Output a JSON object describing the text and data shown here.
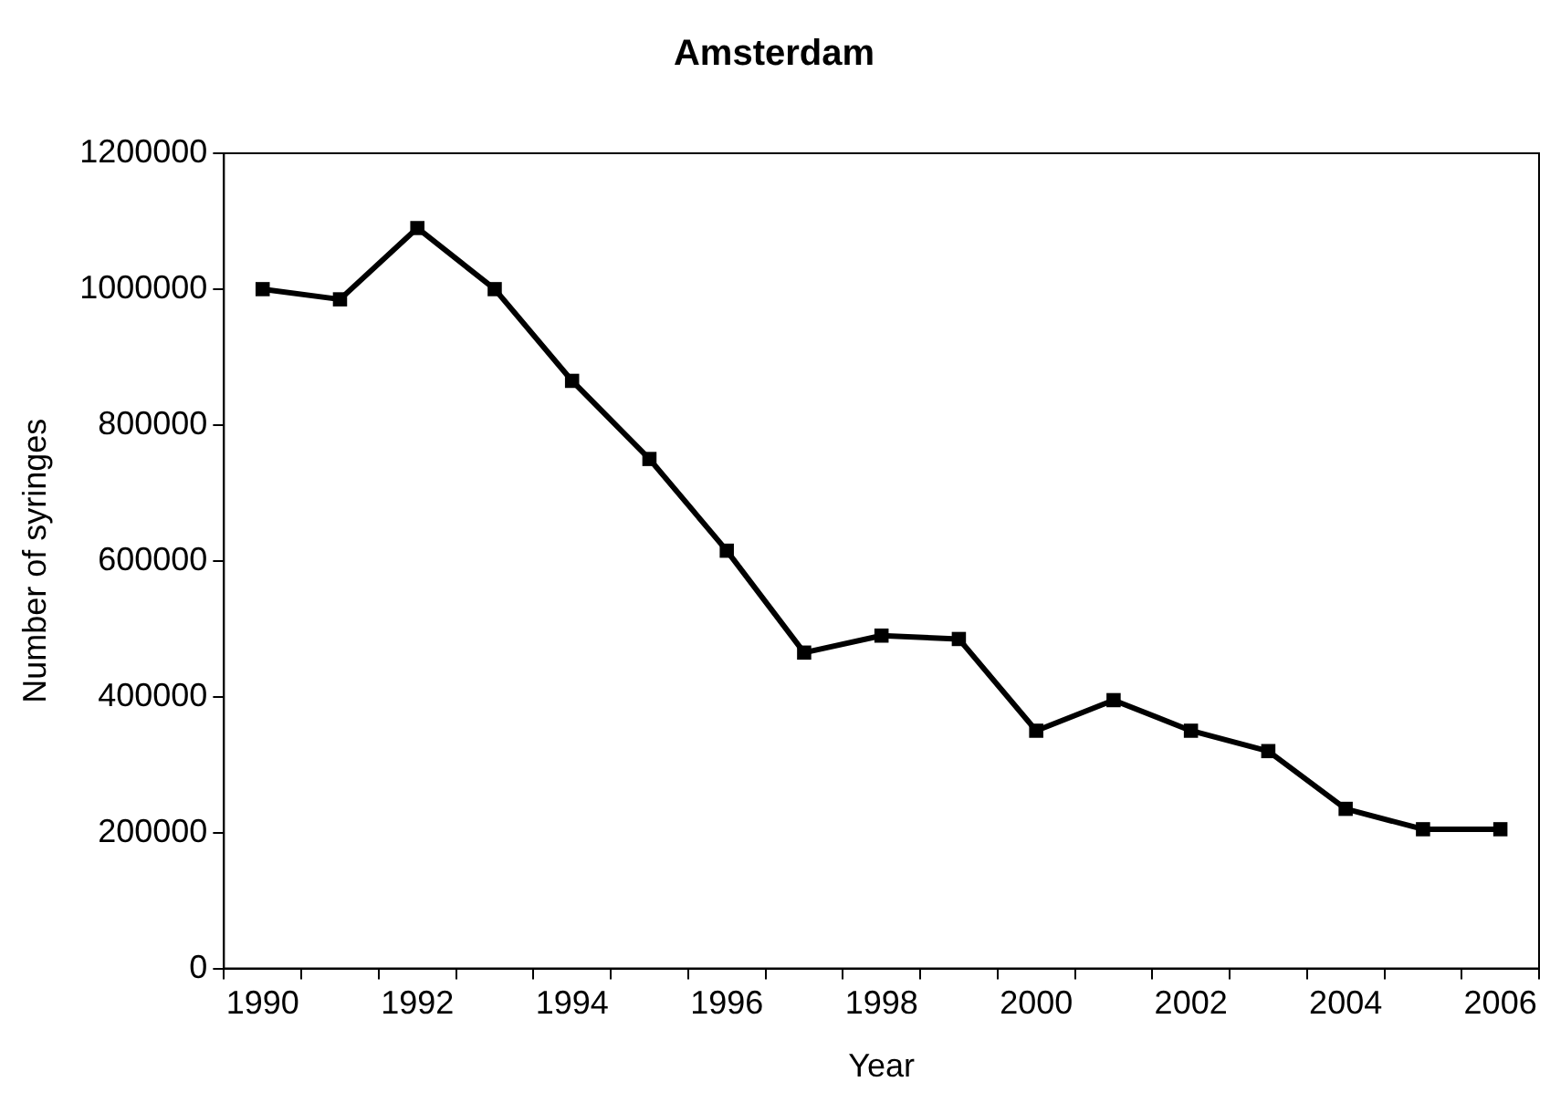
{
  "chart_data": {
    "type": "line",
    "title": "Amsterdam",
    "xlabel": "Year",
    "ylabel": "Number of syringes",
    "categories": [
      "1990",
      null,
      "1992",
      null,
      "1994",
      null,
      "1996",
      null,
      "1998",
      null,
      "2000",
      null,
      "2002",
      null,
      "2004",
      null,
      "2006"
    ],
    "series": [
      {
        "color": "#000000",
        "values": [
          1000000,
          985000,
          1090000,
          1000000,
          865000,
          750000,
          615000,
          465000,
          490000,
          485000,
          350000,
          395000,
          350000,
          320000,
          235000,
          205000,
          205000
        ]
      }
    ],
    "ylim": [
      0,
      1200000
    ],
    "yticks": [
      0,
      200000,
      400000,
      600000,
      800000,
      1000000,
      1200000
    ],
    "grid": false,
    "legend": false,
    "marker": "square",
    "line_style": "solid"
  }
}
